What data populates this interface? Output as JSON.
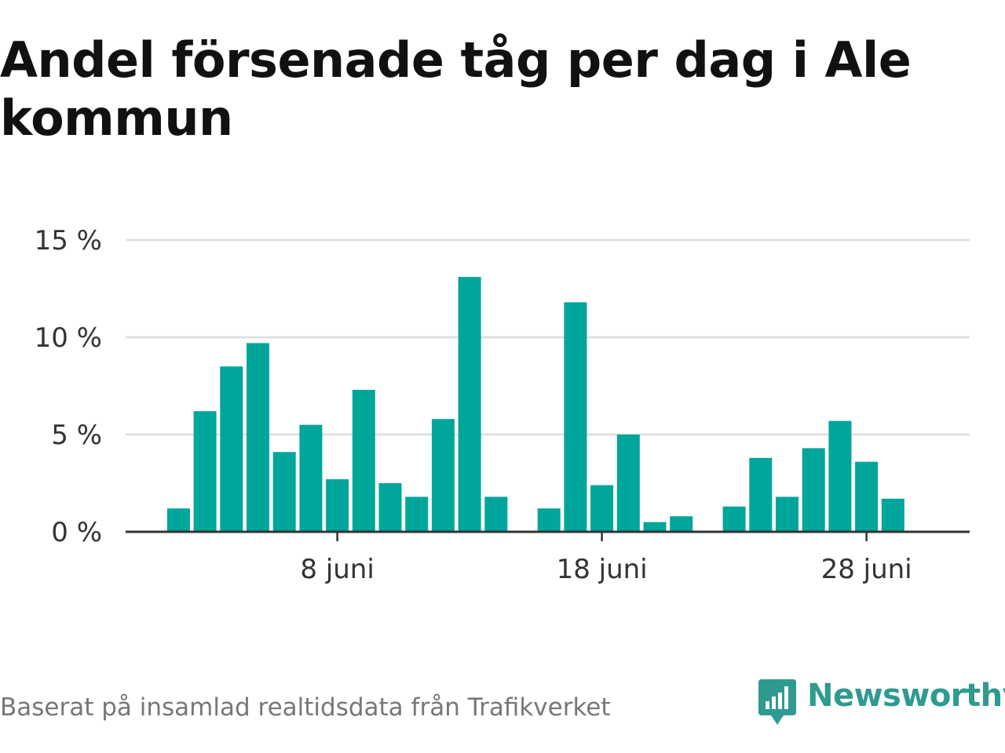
{
  "title": "Andel försenade tåg per dag i Ale kommun",
  "source": "Baserat på insamlad realtidsdata från Trafikverket",
  "brand": {
    "name": "Newsworthy",
    "icon": "newsworthy-logo-icon",
    "color": "#2f9a8f"
  },
  "colors": {
    "bar": "#00a59b",
    "grid": "#dddddd",
    "axis": "#333333"
  },
  "chart_data": {
    "type": "bar",
    "title": "Andel försenade tåg per dag i Ale kommun",
    "xlabel": "",
    "ylabel": "",
    "unit": "%",
    "ylim": [
      0,
      15
    ],
    "yticks": [
      0,
      5,
      10,
      15
    ],
    "ytick_labels": [
      "0 %",
      "5 %",
      "10 %",
      "15 %"
    ],
    "xtick_days": [
      8,
      18,
      28
    ],
    "xtick_labels": [
      "8 juni",
      "18 juni",
      "28 juni"
    ],
    "grid": true,
    "x": [
      "2 juni",
      "3 juni",
      "4 juni",
      "5 juni",
      "6 juni",
      "7 juni",
      "8 juni",
      "9 juni",
      "10 juni",
      "11 juni",
      "12 juni",
      "13 juni",
      "14 juni",
      "15 juni",
      "16 juni",
      "17 juni",
      "18 juni",
      "19 juni",
      "20 juni",
      "21 juni",
      "22 juni",
      "23 juni",
      "24 juni",
      "25 juni",
      "26 juni",
      "27 juni",
      "28 juni",
      "29 juni"
    ],
    "x_day": [
      2,
      3,
      4,
      5,
      6,
      7,
      8,
      9,
      10,
      11,
      12,
      13,
      14,
      15,
      16,
      17,
      18,
      19,
      20,
      21,
      22,
      23,
      24,
      25,
      26,
      27,
      28,
      29
    ],
    "values": [
      1.2,
      6.2,
      8.5,
      9.7,
      4.1,
      5.5,
      2.7,
      7.3,
      2.5,
      1.8,
      5.8,
      13.1,
      1.8,
      null,
      1.2,
      11.8,
      2.4,
      5.0,
      0.5,
      0.8,
      null,
      1.3,
      3.8,
      1.8,
      4.3,
      5.7,
      3.6,
      1.7
    ]
  }
}
